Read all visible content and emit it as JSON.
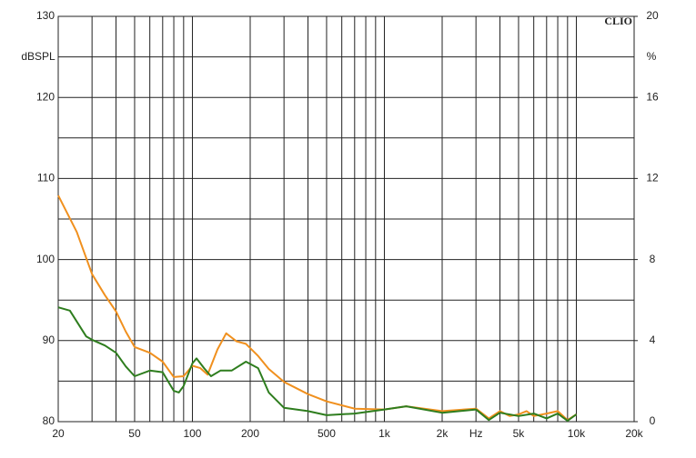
{
  "chart_data": {
    "type": "line",
    "logo": "CLIO",
    "ylabel": "dBSPL",
    "y2label": "%",
    "xscale": "log",
    "xlim": [
      20,
      20000
    ],
    "ylim": [
      80,
      130
    ],
    "y2lim": [
      0,
      20
    ],
    "xticks": [
      20,
      50,
      100,
      200,
      500,
      {
        "value": 1000,
        "label": "1k"
      },
      {
        "value": 2000,
        "label": "2k"
      },
      {
        "value": 3000,
        "label": "Hz"
      },
      {
        "value": 5000,
        "label": "5k"
      },
      {
        "value": 10000,
        "label": "10k"
      },
      {
        "value": 20000,
        "label": "20k"
      }
    ],
    "x_grid": [
      30,
      40,
      60,
      70,
      80,
      90,
      300,
      400,
      600,
      700,
      800,
      900,
      4000,
      6000,
      7000,
      8000,
      9000
    ],
    "yticks": [
      80,
      90,
      100,
      110,
      120,
      130
    ],
    "y_grid": [
      85,
      95,
      105,
      115,
      125
    ],
    "y2ticks": [
      0,
      4,
      8,
      12,
      16,
      20
    ],
    "series": [
      {
        "name": "orange",
        "color": "#f0901e",
        "x": [
          20,
          25,
          30,
          35,
          40,
          45,
          50,
          60,
          70,
          80,
          90,
          100,
          110,
          120,
          135,
          150,
          170,
          190,
          220,
          250,
          300,
          400,
          500,
          700,
          1000,
          1300,
          2000,
          3000,
          3500,
          4000,
          4500,
          5000,
          5500,
          6000,
          7000,
          8000,
          9000,
          10000
        ],
        "values": [
          107.9,
          103.4,
          98.2,
          95.6,
          93.6,
          91.1,
          89.2,
          88.5,
          87.4,
          85.5,
          85.6,
          86.9,
          86.6,
          85.8,
          88.9,
          90.9,
          89.9,
          89.6,
          88.1,
          86.5,
          84.9,
          83.4,
          82.5,
          81.6,
          81.5,
          81.9,
          81.3,
          81.6,
          80.4,
          81.3,
          80.7,
          80.9,
          81.3,
          80.7,
          81,
          81.3,
          80.2,
          80.9
        ]
      },
      {
        "name": "green",
        "color": "#2e7d1e",
        "x": [
          20,
          23,
          28,
          30,
          35,
          40,
          45,
          50,
          60,
          70,
          80,
          85,
          90,
          100,
          105,
          115,
          125,
          140,
          160,
          190,
          220,
          250,
          300,
          400,
          500,
          700,
          1000,
          1300,
          2000,
          3000,
          3500,
          4000,
          5000,
          6000,
          7000,
          8000,
          9000,
          10000
        ],
        "values": [
          94.1,
          93.7,
          90.5,
          90.1,
          89.4,
          88.5,
          86.8,
          85.6,
          86.3,
          86.1,
          83.8,
          83.6,
          84.4,
          87.2,
          87.8,
          86.6,
          85.6,
          86.3,
          86.3,
          87.4,
          86.6,
          83.6,
          81.7,
          81.3,
          80.8,
          81,
          81.5,
          81.9,
          81.1,
          81.5,
          80.2,
          81.1,
          80.7,
          81,
          80.4,
          81,
          80.1,
          80.9
        ]
      }
    ]
  }
}
